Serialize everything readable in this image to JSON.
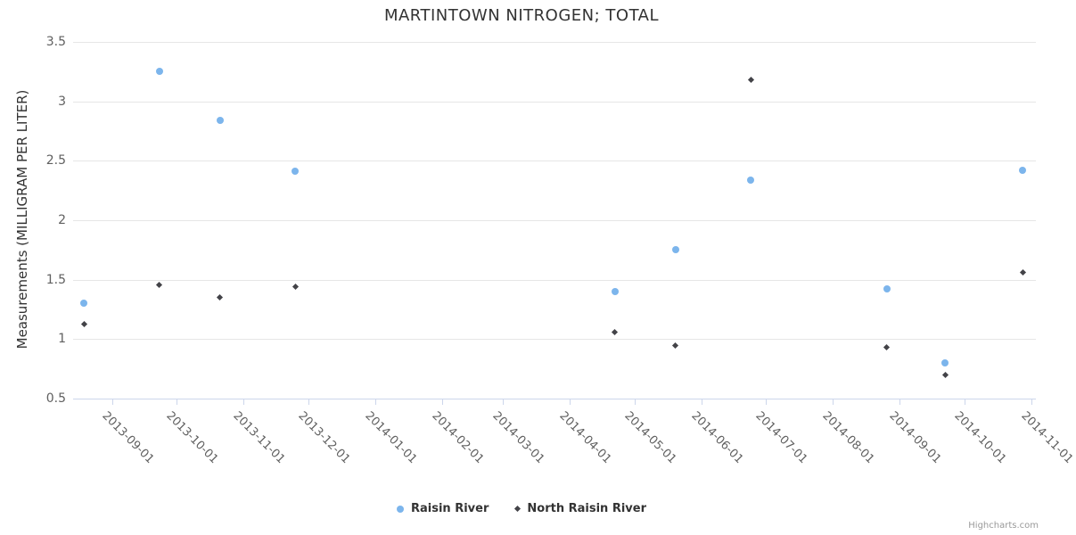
{
  "chart": {
    "title": "MARTINTOWN NITROGEN; TOTAL",
    "credits": "Highcharts.com"
  },
  "chart_data": {
    "type": "scatter",
    "title": "MARTINTOWN NITROGEN; TOTAL",
    "xlabel": "",
    "ylabel": "Measurements (MILLIGRAM PER LITER)",
    "grid": "horizontal",
    "legend_position": "bottom-center",
    "x_axis": {
      "type": "datetime",
      "min": "2013-08-14",
      "max": "2014-11-03",
      "tick_labels": [
        "2013-09-01",
        "2013-10-01",
        "2013-11-01",
        "2013-12-01",
        "2014-01-01",
        "2014-02-01",
        "2014-03-01",
        "2014-04-01",
        "2014-05-01",
        "2014-06-01",
        "2014-07-01",
        "2014-08-01",
        "2014-09-01",
        "2014-10-01",
        "2014-11-01"
      ]
    },
    "y_axis": {
      "min": 0.5,
      "max": 3.5,
      "tick_interval": 0.5,
      "tick_labels": [
        "0.5",
        "1",
        "1.5",
        "2",
        "2.5",
        "3",
        "3.5"
      ]
    },
    "series": [
      {
        "name": "Raisin River",
        "color": "#7cb5ec",
        "marker": "circle",
        "points": [
          {
            "date": "2013-08-19",
            "value": 1.3
          },
          {
            "date": "2013-09-23",
            "value": 3.25
          },
          {
            "date": "2013-10-21",
            "value": 2.84
          },
          {
            "date": "2013-11-25",
            "value": 2.41
          },
          {
            "date": "2014-04-22",
            "value": 1.4
          },
          {
            "date": "2014-05-20",
            "value": 1.75
          },
          {
            "date": "2014-06-24",
            "value": 2.34
          },
          {
            "date": "2014-08-26",
            "value": 1.42
          },
          {
            "date": "2014-09-22",
            "value": 0.8
          },
          {
            "date": "2014-10-28",
            "value": 2.42
          }
        ]
      },
      {
        "name": "North Raisin River",
        "color": "#434348",
        "marker": "diamond",
        "points": [
          {
            "date": "2013-08-19",
            "value": 1.13
          },
          {
            "date": "2013-09-23",
            "value": 1.46
          },
          {
            "date": "2013-10-21",
            "value": 1.35
          },
          {
            "date": "2013-11-25",
            "value": 1.44
          },
          {
            "date": "2014-04-22",
            "value": 1.06
          },
          {
            "date": "2014-05-20",
            "value": 0.95
          },
          {
            "date": "2014-06-24",
            "value": 3.18
          },
          {
            "date": "2014-08-26",
            "value": 0.93
          },
          {
            "date": "2014-09-22",
            "value": 0.7
          },
          {
            "date": "2014-10-28",
            "value": 1.56
          }
        ]
      }
    ],
    "colors": {
      "series_1": "#7cb5ec",
      "series_2": "#434348",
      "gridline": "#e6e6e6",
      "axis_line": "#ccd6eb",
      "axis_label": "#606060",
      "text": "#333333",
      "credits": "#999999"
    }
  }
}
